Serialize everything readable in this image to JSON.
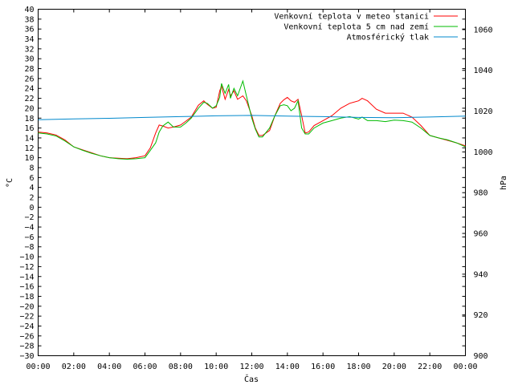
{
  "chart_data": {
    "type": "line",
    "title": "",
    "xlabel": "Čas",
    "ylabel": "°C",
    "y2label": "hPa",
    "xlim": [
      0,
      24
    ],
    "ylim": [
      -30,
      40
    ],
    "y2lim": [
      900,
      1070
    ],
    "grid": false,
    "legend": "top-right",
    "x_ticks": [
      "00:00",
      "02:00",
      "04:00",
      "06:00",
      "08:00",
      "10:00",
      "12:00",
      "14:00",
      "16:00",
      "18:00",
      "20:00",
      "22:00",
      "00:00"
    ],
    "y_ticks": [
      40,
      38,
      36,
      34,
      32,
      30,
      28,
      26,
      24,
      22,
      20,
      18,
      16,
      14,
      12,
      10,
      8,
      6,
      4,
      2,
      0,
      -2,
      -4,
      -6,
      -8,
      -10,
      -12,
      -14,
      -16,
      -18,
      -20,
      -22,
      -24,
      -26,
      -28,
      -30
    ],
    "y2_ticks": [
      1060,
      1040,
      1020,
      1000,
      980,
      960,
      940,
      920,
      900
    ],
    "series": [
      {
        "name": "Venkovní teplota v meteo stanici",
        "color": "#ff0000",
        "axis": "left",
        "x": [
          0,
          0.5,
          1,
          1.5,
          2,
          2.5,
          3,
          3.5,
          4,
          4.5,
          5,
          5.5,
          6,
          6.3,
          6.6,
          6.8,
          7,
          7.3,
          7.6,
          8,
          8.3,
          8.6,
          9,
          9.3,
          9.5,
          9.8,
          10,
          10.2,
          10.3,
          10.5,
          10.7,
          10.8,
          11,
          11.2,
          11.5,
          11.7,
          12,
          12.2,
          12.4,
          12.6,
          13,
          13.3,
          13.6,
          13.8,
          14,
          14.2,
          14.4,
          14.6,
          14.8,
          15,
          15.2,
          15.5,
          16,
          16.5,
          17,
          17.5,
          18,
          18.2,
          18.5,
          19,
          19.5,
          20,
          20.5,
          21,
          21.5,
          22,
          22.5,
          23,
          23.5,
          24
        ],
        "y": [
          15.2,
          15,
          14.6,
          13.6,
          12.2,
          11.6,
          11,
          10.4,
          10,
          9.9,
          9.8,
          10,
          10.4,
          12,
          15,
          16.6,
          16.4,
          16,
          16.2,
          16.6,
          17.4,
          18.2,
          20.6,
          21.5,
          20.8,
          20,
          20.2,
          23.5,
          24.5,
          21.8,
          23.8,
          22.5,
          23.5,
          21.8,
          22.5,
          21.5,
          18.5,
          16,
          14.5,
          14.5,
          15.5,
          18.5,
          21,
          21.7,
          22.2,
          21.5,
          21.2,
          21.8,
          18.5,
          15,
          15.2,
          16.5,
          17.5,
          18.5,
          20,
          21,
          21.5,
          22,
          21.5,
          19.8,
          19,
          19,
          19,
          18.2,
          16.5,
          14.5,
          14,
          13.5,
          13,
          12.4
        ]
      },
      {
        "name": "Venkovní teplota 5 cm nad zemí",
        "color": "#00bb00",
        "axis": "left",
        "x": [
          0,
          0.5,
          1,
          1.5,
          2,
          2.5,
          3,
          3.5,
          4,
          4.5,
          5,
          5.5,
          6,
          6.3,
          6.6,
          6.8,
          7,
          7.3,
          7.6,
          8,
          8.3,
          8.6,
          9,
          9.3,
          9.5,
          9.8,
          10,
          10.2,
          10.3,
          10.5,
          10.7,
          10.8,
          11,
          11.2,
          11.5,
          11.7,
          12,
          12.2,
          12.4,
          12.6,
          13,
          13.3,
          13.6,
          13.8,
          14,
          14.2,
          14.4,
          14.6,
          14.8,
          15,
          15.2,
          15.5,
          16,
          16.5,
          17,
          17.5,
          18,
          18.2,
          18.5,
          19,
          19.5,
          20,
          20.5,
          21,
          21.5,
          22,
          22.5,
          23,
          23.5,
          24
        ],
        "y": [
          15,
          14.8,
          14.4,
          13.4,
          12.2,
          11.5,
          10.9,
          10.4,
          10,
          9.8,
          9.7,
          9.8,
          10,
          11.5,
          13,
          15.2,
          16.4,
          17.2,
          16.2,
          16.2,
          17,
          18,
          20,
          21.2,
          21,
          20,
          20.5,
          22.2,
          25,
          23,
          24.8,
          22,
          24,
          22.5,
          25.5,
          22.5,
          18,
          15.8,
          14.2,
          14.2,
          16,
          18.5,
          20.5,
          20.7,
          20.5,
          19.5,
          20,
          21.5,
          16,
          14.8,
          14.8,
          16,
          17,
          17.5,
          18,
          18.3,
          17.8,
          18.2,
          17.5,
          17.5,
          17.3,
          17.6,
          17.5,
          17.2,
          16,
          14.5,
          14,
          13.6,
          13,
          12.2
        ]
      },
      {
        "name": "Atmosférický tlak",
        "color": "#0088cc",
        "axis": "right",
        "x": [
          0,
          2,
          4,
          6,
          8,
          10,
          12,
          14,
          16,
          18,
          20,
          22,
          24
        ],
        "y": [
          1015.8,
          1016.2,
          1016.5,
          1016.9,
          1017.3,
          1017.7,
          1017.9,
          1017.6,
          1017.3,
          1016.9,
          1016.8,
          1017.1,
          1017.6
        ]
      }
    ]
  }
}
